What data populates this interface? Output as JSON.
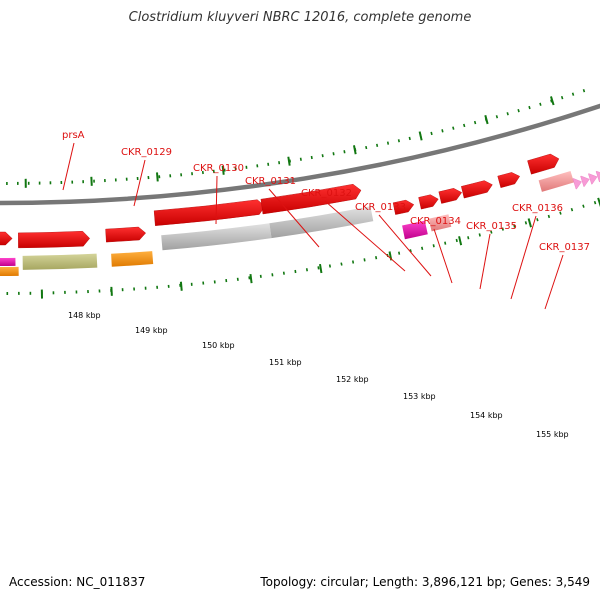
{
  "title": "Clostridium kluyveri NBRC 12016, complete genome",
  "footer": {
    "accession": "Accession: NC_011837",
    "summary": "Topology: circular; Length: 3,896,121 bp; Genes: 3,549"
  },
  "colors": {
    "cds": "#ee1111",
    "backbone": "#777777",
    "ticks": "#117711",
    "label": "#dd1111"
  },
  "gene_labels": [
    "prsA",
    "CKR_0129",
    "CKR_0130",
    "CKR_0131",
    "CKR_0132",
    "CKR_0133",
    "CKR_0134",
    "CKR_0135",
    "CKR_0136",
    "CKR_0137"
  ],
  "ruler_labels": [
    "148 kbp",
    "149 kbp",
    "150 kbp",
    "151 kbp",
    "152 kbp",
    "153 kbp",
    "154 kbp",
    "155 kbp"
  ]
}
